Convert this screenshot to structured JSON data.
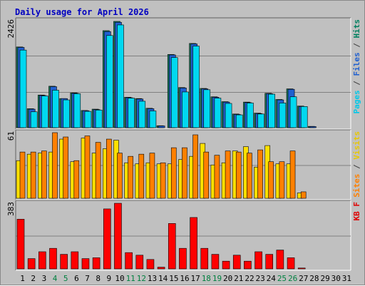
{
  "title": "Daily usage for April 2026",
  "chart_data": [
    {
      "type": "bar",
      "panel": "top",
      "ylabel_parts": [
        {
          "text": "Pages",
          "color": "#00c8e8"
        },
        {
          "text": " / ",
          "color": "#404040"
        },
        {
          "text": "Files",
          "color": "#2060d0"
        },
        {
          "text": " / ",
          "color": "#404040"
        },
        {
          "text": "Hits",
          "color": "#008060"
        }
      ],
      "ymax_label": "2426",
      "ylim": [
        0,
        2426
      ],
      "grid": true,
      "categories": [
        "1",
        "2",
        "3",
        "4",
        "5",
        "6",
        "7",
        "8",
        "9",
        "10",
        "11",
        "12",
        "13",
        "14",
        "15",
        "16",
        "17",
        "18",
        "19",
        "20",
        "21",
        "22",
        "23",
        "24",
        "25",
        "26",
        "27",
        "28",
        "29",
        "30",
        "31"
      ],
      "series": [
        {
          "name": "Hits",
          "color": "#1a8060",
          "values": [
            1830,
            430,
            740,
            940,
            660,
            790,
            390,
            420,
            2200,
            2410,
            690,
            660,
            440,
            45,
            1660,
            910,
            1910,
            890,
            700,
            590,
            310,
            580,
            330,
            780,
            640,
            880,
            490,
            30,
            0,
            0,
            0
          ]
        },
        {
          "name": "Files",
          "color": "#2060d0",
          "values": [
            1820,
            420,
            730,
            930,
            660,
            780,
            385,
            410,
            2180,
            2390,
            680,
            650,
            430,
            40,
            1650,
            900,
            1900,
            880,
            690,
            580,
            300,
            570,
            320,
            770,
            630,
            870,
            480,
            25,
            0,
            0,
            0
          ]
        },
        {
          "name": "Pages",
          "color": "#00d8f0",
          "values": [
            1760,
            360,
            720,
            850,
            630,
            770,
            370,
            400,
            2090,
            2330,
            670,
            600,
            380,
            0,
            1590,
            810,
            1850,
            860,
            670,
            550,
            290,
            560,
            310,
            760,
            560,
            700,
            480,
            0,
            0,
            0,
            0
          ]
        }
      ]
    },
    {
      "type": "bar",
      "panel": "middle",
      "ylabel_parts": [
        {
          "text": "Sites",
          "color": "#ff8000"
        },
        {
          "text": " / ",
          "color": "#404040"
        },
        {
          "text": "Visits",
          "color": "#e8c800"
        }
      ],
      "ymax_label": "61",
      "ylim": [
        0,
        61
      ],
      "grid": true,
      "categories": [
        "1",
        "2",
        "3",
        "4",
        "5",
        "6",
        "7",
        "8",
        "9",
        "10",
        "11",
        "12",
        "13",
        "14",
        "15",
        "16",
        "17",
        "18",
        "19",
        "20",
        "21",
        "22",
        "23",
        "24",
        "25",
        "26",
        "27",
        "28",
        "29",
        "30",
        "31"
      ],
      "series": [
        {
          "name": "Visits",
          "color": "#ffe000",
          "values": [
            35,
            41,
            42,
            43,
            55,
            34,
            56,
            42,
            46,
            54,
            33,
            32,
            33,
            32,
            32,
            36,
            39,
            51,
            31,
            33,
            44,
            48,
            29,
            49,
            32,
            32,
            5,
            0,
            0,
            0,
            0
          ]
        },
        {
          "name": "Sites",
          "color": "#ff8000",
          "values": [
            43,
            43,
            44,
            61,
            57,
            35,
            58,
            52,
            55,
            42,
            39,
            41,
            42,
            33,
            47,
            47,
            59,
            43,
            40,
            44,
            43,
            42,
            45,
            34,
            34,
            44,
            6,
            0,
            0,
            0,
            0
          ]
        }
      ]
    },
    {
      "type": "bar",
      "panel": "bottom",
      "ylabel_parts": [
        {
          "text": "KB F",
          "color": "#e00000"
        }
      ],
      "ymax_label": "383",
      "ylim": [
        0,
        383
      ],
      "grid": true,
      "categories": [
        "1",
        "2",
        "3",
        "4",
        "5",
        "6",
        "7",
        "8",
        "9",
        "10",
        "11",
        "12",
        "13",
        "14",
        "15",
        "16",
        "17",
        "18",
        "19",
        "20",
        "21",
        "22",
        "23",
        "24",
        "25",
        "26",
        "27",
        "28",
        "29",
        "30",
        "31"
      ],
      "series": [
        {
          "name": "KB F",
          "color": "#ff0000",
          "values": [
            290,
            60,
            100,
            120,
            85,
            100,
            60,
            65,
            350,
            383,
            95,
            80,
            55,
            10,
            265,
            120,
            300,
            120,
            85,
            45,
            80,
            45,
            100,
            85,
            110,
            65,
            5,
            0,
            0,
            0,
            0
          ]
        }
      ]
    }
  ],
  "weekend_days": [
    "4",
    "5",
    "11",
    "12",
    "18",
    "19",
    "25",
    "26"
  ],
  "colors": {
    "weekday_label": "#000000",
    "weekend_label": "#008040",
    "panel_bg": "#c0c0c0",
    "grid": "#808080",
    "title": "#0000c0"
  }
}
